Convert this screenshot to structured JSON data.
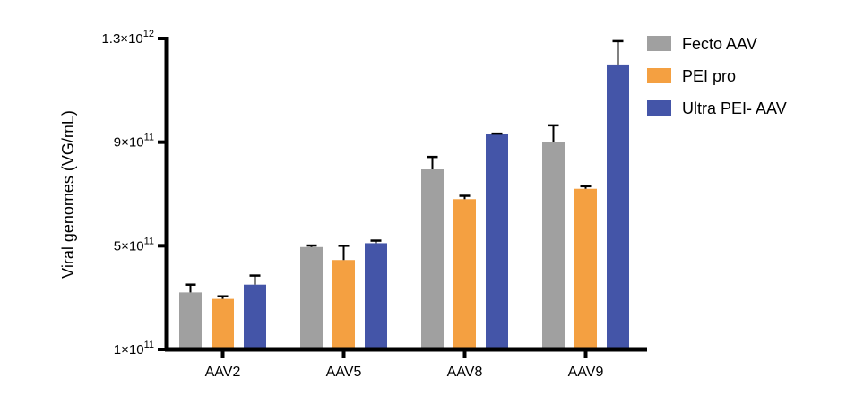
{
  "chart_data": {
    "type": "bar",
    "ylabel": "Viral genomes (VG/mL)",
    "xlabel": "",
    "ylim": [
      100000000000.0,
      1300000000000.0
    ],
    "grid": false,
    "legend_position": "top-right",
    "categories": [
      "AAV2",
      "AAV5",
      "AAV8",
      "AAV9"
    ],
    "y_ticks": [
      {
        "value": 100000000000.0,
        "mantissa": "1",
        "exponent": "11"
      },
      {
        "value": 500000000000.0,
        "mantissa": "5",
        "exponent": "11"
      },
      {
        "value": 900000000000.0,
        "mantissa": "9",
        "exponent": "11"
      },
      {
        "value": 1300000000000.0,
        "mantissa": "1.3",
        "exponent": "12"
      }
    ],
    "times_sign": "×",
    "base": "10",
    "series": [
      {
        "name": "Fecto AAV",
        "color": "#a0a0a0",
        "values": [
          320000000000.0,
          495000000000.0,
          795000000000.0,
          900000000000.0
        ],
        "errors": [
          30000000000.0,
          6000000000.0,
          48000000000.0,
          65000000000.0
        ]
      },
      {
        "name": "PEI pro",
        "color": "#f4a041",
        "values": [
          295000000000.0,
          445000000000.0,
          680000000000.0,
          720000000000.0
        ],
        "errors": [
          10000000000.0,
          55000000000.0,
          13000000000.0,
          10000000000.0
        ]
      },
      {
        "name": "Ultra PEI- AAV",
        "color": "#4455a8",
        "values": [
          350000000000.0,
          510000000000.0,
          930000000000.0,
          1200000000000.0
        ],
        "errors": [
          35000000000.0,
          10000000000.0,
          3000000000.0,
          90000000000.0
        ]
      }
    ]
  }
}
